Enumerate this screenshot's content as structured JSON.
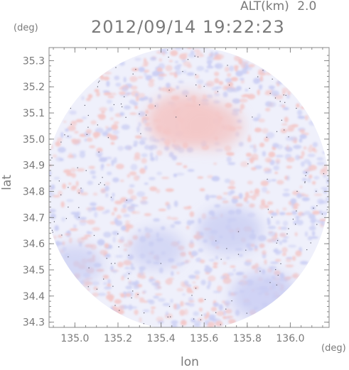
{
  "header": {
    "altitude_label": "ALT(km)",
    "altitude_value": "2.0",
    "timestamp": "2012/09/14 19:22:23"
  },
  "chart_data": {
    "type": "heatmap",
    "title": "2012/09/14 19:22:23",
    "xlabel": "lon",
    "ylabel": "lat",
    "x_unit": "(deg)",
    "y_unit": "(deg)",
    "xlim": [
      134.88,
      136.18
    ],
    "ylim": [
      34.28,
      35.35
    ],
    "x_ticks": [
      135.0,
      135.2,
      135.4,
      135.6,
      135.8,
      136.0
    ],
    "x_tick_labels": [
      "135.0",
      "135.2",
      "135.4",
      "135.6",
      "135.8",
      "136.0"
    ],
    "y_ticks": [
      35.3,
      35.2,
      35.1,
      35.0,
      34.9,
      34.8,
      34.7,
      34.6,
      34.5,
      34.4,
      34.3
    ],
    "y_tick_labels": [
      "35.3",
      "35.2",
      "35.1",
      "35.0",
      "34.9",
      "34.8",
      "34.7",
      "34.6",
      "34.5",
      "34.4",
      "34.3"
    ],
    "grid": false,
    "radar_center": {
      "lon": 135.52,
      "lat": 34.81
    },
    "radar_radius_deg_lon": 0.66,
    "features": [
      {
        "name": "positive core north",
        "lon": 135.51,
        "lat": 35.07,
        "value": 0.7
      },
      {
        "name": "positive lobe northeast",
        "lon": 135.63,
        "lat": 35.05,
        "value": 0.5
      },
      {
        "name": "negative region southeast",
        "lon": 135.72,
        "lat": 34.65,
        "value": -0.5
      },
      {
        "name": "negative region south",
        "lon": 135.88,
        "lat": 34.4,
        "value": -0.55
      },
      {
        "name": "negative patch southwest",
        "lon": 135.38,
        "lat": 34.58,
        "value": -0.35
      },
      {
        "name": "negative band west",
        "lon": 135.0,
        "lat": 34.52,
        "value": -0.35
      }
    ],
    "colors": {
      "positive": "#f3c7c7",
      "negative": "#c9cdf3",
      "neutral": "#eff0fb"
    }
  }
}
